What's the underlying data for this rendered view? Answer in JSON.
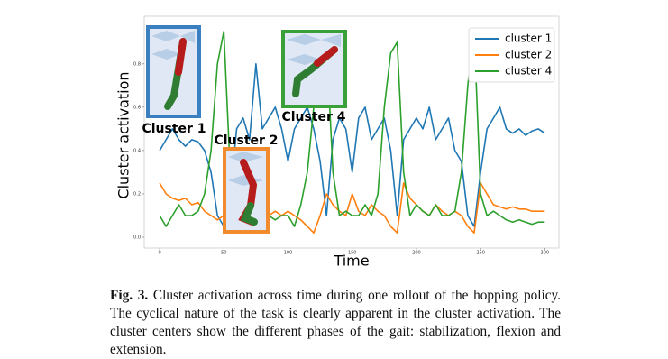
{
  "chart_data": {
    "type": "line",
    "xlabel": "Time",
    "ylabel": "Cluster activation",
    "x": [
      0,
      5,
      10,
      15,
      20,
      25,
      30,
      35,
      40,
      45,
      50,
      55,
      60,
      65,
      70,
      75,
      80,
      85,
      90,
      95,
      100,
      105,
      110,
      115,
      120,
      125,
      130,
      135,
      140,
      145,
      150,
      155,
      160,
      165,
      170,
      175,
      180,
      185,
      190,
      195,
      200,
      205,
      210,
      215,
      220,
      225,
      230,
      235,
      240,
      245,
      250,
      255,
      260,
      265,
      270,
      275,
      280,
      285,
      290,
      295,
      300
    ],
    "series": [
      {
        "name": "cluster 1",
        "color": "#1f77b4",
        "values": [
          0.4,
          0.45,
          0.5,
          0.45,
          0.42,
          0.45,
          0.44,
          0.4,
          0.3,
          0.1,
          0.05,
          0.2,
          0.5,
          0.55,
          0.45,
          0.8,
          0.5,
          0.55,
          0.6,
          0.5,
          0.35,
          0.5,
          0.55,
          0.6,
          0.5,
          0.35,
          0.1,
          0.45,
          0.55,
          0.5,
          0.3,
          0.55,
          0.6,
          0.45,
          0.5,
          0.55,
          0.4,
          0.1,
          0.45,
          0.5,
          0.55,
          0.5,
          0.6,
          0.45,
          0.5,
          0.55,
          0.4,
          0.35,
          0.1,
          0.05,
          0.3,
          0.5,
          0.55,
          0.6,
          0.5,
          0.48,
          0.5,
          0.47,
          0.49,
          0.5,
          0.48
        ]
      },
      {
        "name": "cluster 2",
        "color": "#ff7f0e",
        "values": [
          0.25,
          0.2,
          0.18,
          0.17,
          0.18,
          0.15,
          0.16,
          0.12,
          0.1,
          0.08,
          0.1,
          0.1,
          0.12,
          0.1,
          0.1,
          0.05,
          0.1,
          0.1,
          0.12,
          0.1,
          0.12,
          0.1,
          0.08,
          0.05,
          0.02,
          0.1,
          0.2,
          0.15,
          0.12,
          0.1,
          0.2,
          0.12,
          0.1,
          0.15,
          0.12,
          0.1,
          0.05,
          0.02,
          0.25,
          0.18,
          0.15,
          0.12,
          0.1,
          0.15,
          0.12,
          0.1,
          0.12,
          0.1,
          0.05,
          0.02,
          0.25,
          0.2,
          0.15,
          0.14,
          0.13,
          0.14,
          0.13,
          0.13,
          0.12,
          0.12,
          0.12
        ]
      },
      {
        "name": "cluster 4",
        "color": "#2ca02c",
        "values": [
          0.1,
          0.05,
          0.1,
          0.15,
          0.1,
          0.1,
          0.12,
          0.2,
          0.4,
          0.8,
          0.95,
          0.3,
          0.1,
          0.05,
          0.1,
          0.05,
          0.15,
          0.1,
          0.08,
          0.1,
          0.1,
          0.05,
          0.15,
          0.3,
          0.6,
          0.85,
          0.9,
          0.3,
          0.1,
          0.12,
          0.1,
          0.1,
          0.15,
          0.1,
          0.2,
          0.6,
          0.85,
          0.9,
          0.3,
          0.1,
          0.15,
          0.12,
          0.1,
          0.15,
          0.1,
          0.1,
          0.12,
          0.3,
          0.7,
          0.95,
          0.2,
          0.1,
          0.12,
          0.1,
          0.08,
          0.07,
          0.08,
          0.07,
          0.06,
          0.07,
          0.07
        ]
      }
    ],
    "xlim": [
      -12,
      311
    ],
    "ylim": [
      -0.05,
      1.02
    ],
    "xticks": [
      0,
      50,
      100,
      150,
      200,
      250,
      300
    ],
    "yticks": [
      {
        "value": 0,
        "label": "0.0"
      },
      0.2,
      0.4,
      0.6,
      0.8
    ],
    "legend": "upper right",
    "annotations": [
      "Cluster 1",
      "Cluster 2",
      "Cluster 4"
    ]
  },
  "caption": {
    "label": "Fig. 3.",
    "text": "Cluster activation across time during one rollout of the hopping policy. The cyclical nature of the task is clearly apparent in the cluster activation. The cluster centers show the different phases of the gait: stabilization, flexion and extension."
  }
}
